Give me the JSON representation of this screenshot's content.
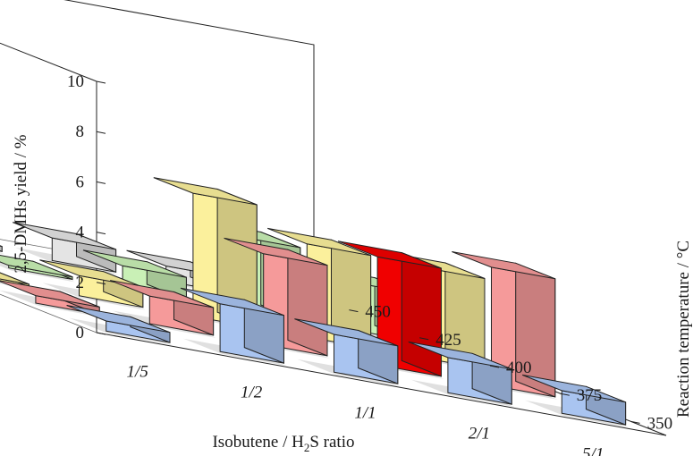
{
  "chart_data": {
    "type": "bar3d",
    "xlabel": {
      "pre": "Isobutene / H",
      "sub": "2",
      "post": "S ratio"
    },
    "ylabel": "Reaction temperature / °C",
    "zlabel": "2,5-DMHs yield / %",
    "x_categories": [
      "1/5",
      "1/2",
      "1/1",
      "2/1",
      "5/1"
    ],
    "y_categories": [
      "350",
      "375",
      "400",
      "425",
      "450"
    ],
    "zlim": [
      0,
      10
    ],
    "z_ticks": [
      "0",
      "2",
      "4",
      "6",
      "8",
      "10"
    ],
    "series": [
      {
        "temperature": "350",
        "color": "#a9c4f0",
        "values": [
          0.4,
          1.9,
          1.5,
          1.4,
          0.9
        ]
      },
      {
        "temperature": "375",
        "color": "#f59a9a",
        "values": [
          0.3,
          1.1,
          3.6,
          4.3,
          4.7
        ]
      },
      {
        "temperature": "400",
        "color": "#fbf09c",
        "values": [
          0.1,
          0.8,
          4.9,
          3.7,
          3.6
        ]
      },
      {
        "temperature": "425",
        "color": "#c9f0b6",
        "values": [
          0.1,
          0.1,
          0.9,
          2.9,
          1.9
        ]
      },
      {
        "temperature": "450",
        "color": "#e4e4e4",
        "values": [
          0.1,
          0.2,
          0.9,
          0.6,
          0.8
        ]
      }
    ],
    "highlight": {
      "x_category": "2/1",
      "temperature": "375",
      "color": "#f00000"
    },
    "grid": false
  }
}
